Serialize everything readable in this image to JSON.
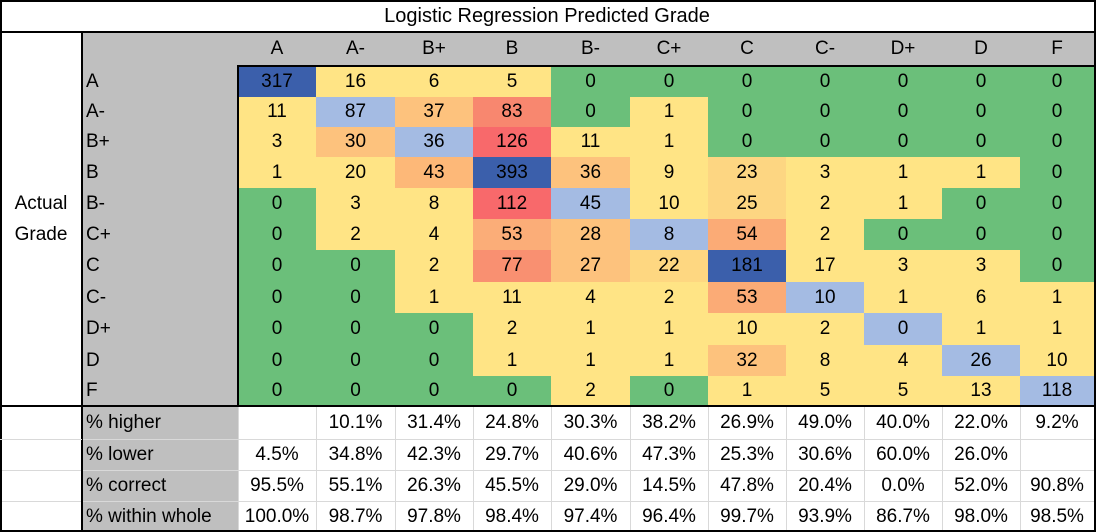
{
  "title": "Logistic Regression Predicted Grade",
  "row_axis_label": [
    "Actual",
    "Grade"
  ],
  "chart_data": {
    "type": "heatmap",
    "title": "Logistic Regression Predicted Grade",
    "xlabel": "Logistic Regression Predicted Grade",
    "ylabel": "Actual Grade",
    "columns": [
      "A",
      "A-",
      "B+",
      "B",
      "B-",
      "C+",
      "C",
      "C-",
      "D+",
      "D",
      "F"
    ],
    "rows": [
      "A",
      "A-",
      "B+",
      "B",
      "B-",
      "C+",
      "C",
      "C-",
      "D+",
      "D",
      "F"
    ],
    "values": [
      [
        317,
        16,
        6,
        5,
        0,
        0,
        0,
        0,
        0,
        0,
        0
      ],
      [
        11,
        87,
        37,
        83,
        0,
        1,
        0,
        0,
        0,
        0,
        0
      ],
      [
        3,
        30,
        36,
        126,
        11,
        1,
        0,
        0,
        0,
        0,
        0
      ],
      [
        1,
        20,
        43,
        393,
        36,
        9,
        23,
        3,
        1,
        1,
        0
      ],
      [
        0,
        3,
        8,
        112,
        45,
        10,
        25,
        2,
        1,
        0,
        0
      ],
      [
        0,
        2,
        4,
        53,
        28,
        8,
        54,
        2,
        0,
        0,
        0
      ],
      [
        0,
        0,
        2,
        77,
        27,
        22,
        181,
        17,
        3,
        3,
        0
      ],
      [
        0,
        0,
        1,
        11,
        4,
        2,
        53,
        10,
        1,
        6,
        1
      ],
      [
        0,
        0,
        0,
        2,
        1,
        1,
        10,
        2,
        0,
        1,
        1
      ],
      [
        0,
        0,
        0,
        1,
        1,
        1,
        32,
        8,
        4,
        26,
        10
      ],
      [
        0,
        0,
        0,
        0,
        2,
        0,
        1,
        5,
        5,
        13,
        118
      ]
    ],
    "cell_colors": [
      [
        "#3b5fab",
        "#ffe485",
        "#ffe485",
        "#ffe485",
        "#6bbf7a",
        "#6bbf7a",
        "#6bbf7a",
        "#6bbf7a",
        "#6bbf7a",
        "#6bbf7a",
        "#6bbf7a"
      ],
      [
        "#ffe485",
        "#a4bbe3",
        "#fdc27d",
        "#f8876f",
        "#6bbf7a",
        "#ffe485",
        "#6bbf7a",
        "#6bbf7a",
        "#6bbf7a",
        "#6bbf7a",
        "#6bbf7a"
      ],
      [
        "#ffe485",
        "#fdc27d",
        "#a4bbe3",
        "#f8696b",
        "#ffe485",
        "#ffe485",
        "#6bbf7a",
        "#6bbf7a",
        "#6bbf7a",
        "#6bbf7a",
        "#6bbf7a"
      ],
      [
        "#ffe485",
        "#ffe485",
        "#fdb878",
        "#3b5fab",
        "#fdc27d",
        "#ffe485",
        "#fdd682",
        "#ffe485",
        "#ffe485",
        "#ffe485",
        "#6bbf7a"
      ],
      [
        "#6bbf7a",
        "#ffe485",
        "#ffe485",
        "#f8696b",
        "#a4bbe3",
        "#ffe485",
        "#fdd682",
        "#ffe485",
        "#ffe485",
        "#6bbf7a",
        "#6bbf7a"
      ],
      [
        "#6bbf7a",
        "#ffe485",
        "#ffe485",
        "#fbad78",
        "#fdc27d",
        "#a4bbe3",
        "#fbab76",
        "#ffe485",
        "#6bbf7a",
        "#6bbf7a",
        "#6bbf7a"
      ],
      [
        "#6bbf7a",
        "#6bbf7a",
        "#ffe485",
        "#f99071",
        "#fdc27d",
        "#fed781",
        "#3b5fab",
        "#ffe485",
        "#ffe485",
        "#ffe485",
        "#6bbf7a"
      ],
      [
        "#6bbf7a",
        "#6bbf7a",
        "#ffe485",
        "#ffe485",
        "#ffe485",
        "#ffe485",
        "#fbab76",
        "#a4bbe3",
        "#ffe485",
        "#ffe485",
        "#ffe485"
      ],
      [
        "#6bbf7a",
        "#6bbf7a",
        "#6bbf7a",
        "#ffe485",
        "#ffe485",
        "#ffe485",
        "#ffe485",
        "#ffe485",
        "#a4bbe3",
        "#ffe485",
        "#ffe485"
      ],
      [
        "#6bbf7a",
        "#6bbf7a",
        "#6bbf7a",
        "#ffe485",
        "#ffe485",
        "#ffe485",
        "#fdc27d",
        "#ffe485",
        "#ffe485",
        "#a4bbe3",
        "#ffe485"
      ],
      [
        "#6bbf7a",
        "#6bbf7a",
        "#6bbf7a",
        "#6bbf7a",
        "#ffe485",
        "#6bbf7a",
        "#ffe485",
        "#ffe485",
        "#ffe485",
        "#ffe485",
        "#a4bbe3"
      ]
    ],
    "color_legend": {
      "correct_high": "#3b5fab",
      "correct": "#a4bbe3",
      "zero_far": "#6bbf7a",
      "low": "#ffe485",
      "mid": "#fdc27d",
      "high": "#f8696b"
    },
    "summary_rows": [
      {
        "label": "% higher",
        "values": [
          "",
          "10.1%",
          "31.4%",
          "24.8%",
          "30.3%",
          "38.2%",
          "26.9%",
          "49.0%",
          "40.0%",
          "22.0%",
          "9.2%"
        ]
      },
      {
        "label": "% lower",
        "values": [
          "4.5%",
          "34.8%",
          "42.3%",
          "29.7%",
          "40.6%",
          "47.3%",
          "25.3%",
          "30.6%",
          "60.0%",
          "26.0%",
          ""
        ]
      },
      {
        "label": "% correct",
        "values": [
          "95.5%",
          "55.1%",
          "26.3%",
          "45.5%",
          "29.0%",
          "14.5%",
          "47.8%",
          "20.4%",
          "0.0%",
          "52.0%",
          "90.8%"
        ]
      },
      {
        "label": "% within whole",
        "values": [
          "100.0%",
          "98.7%",
          "97.8%",
          "98.4%",
          "97.4%",
          "96.4%",
          "99.7%",
          "93.9%",
          "86.7%",
          "98.0%",
          "98.5%"
        ]
      }
    ]
  }
}
